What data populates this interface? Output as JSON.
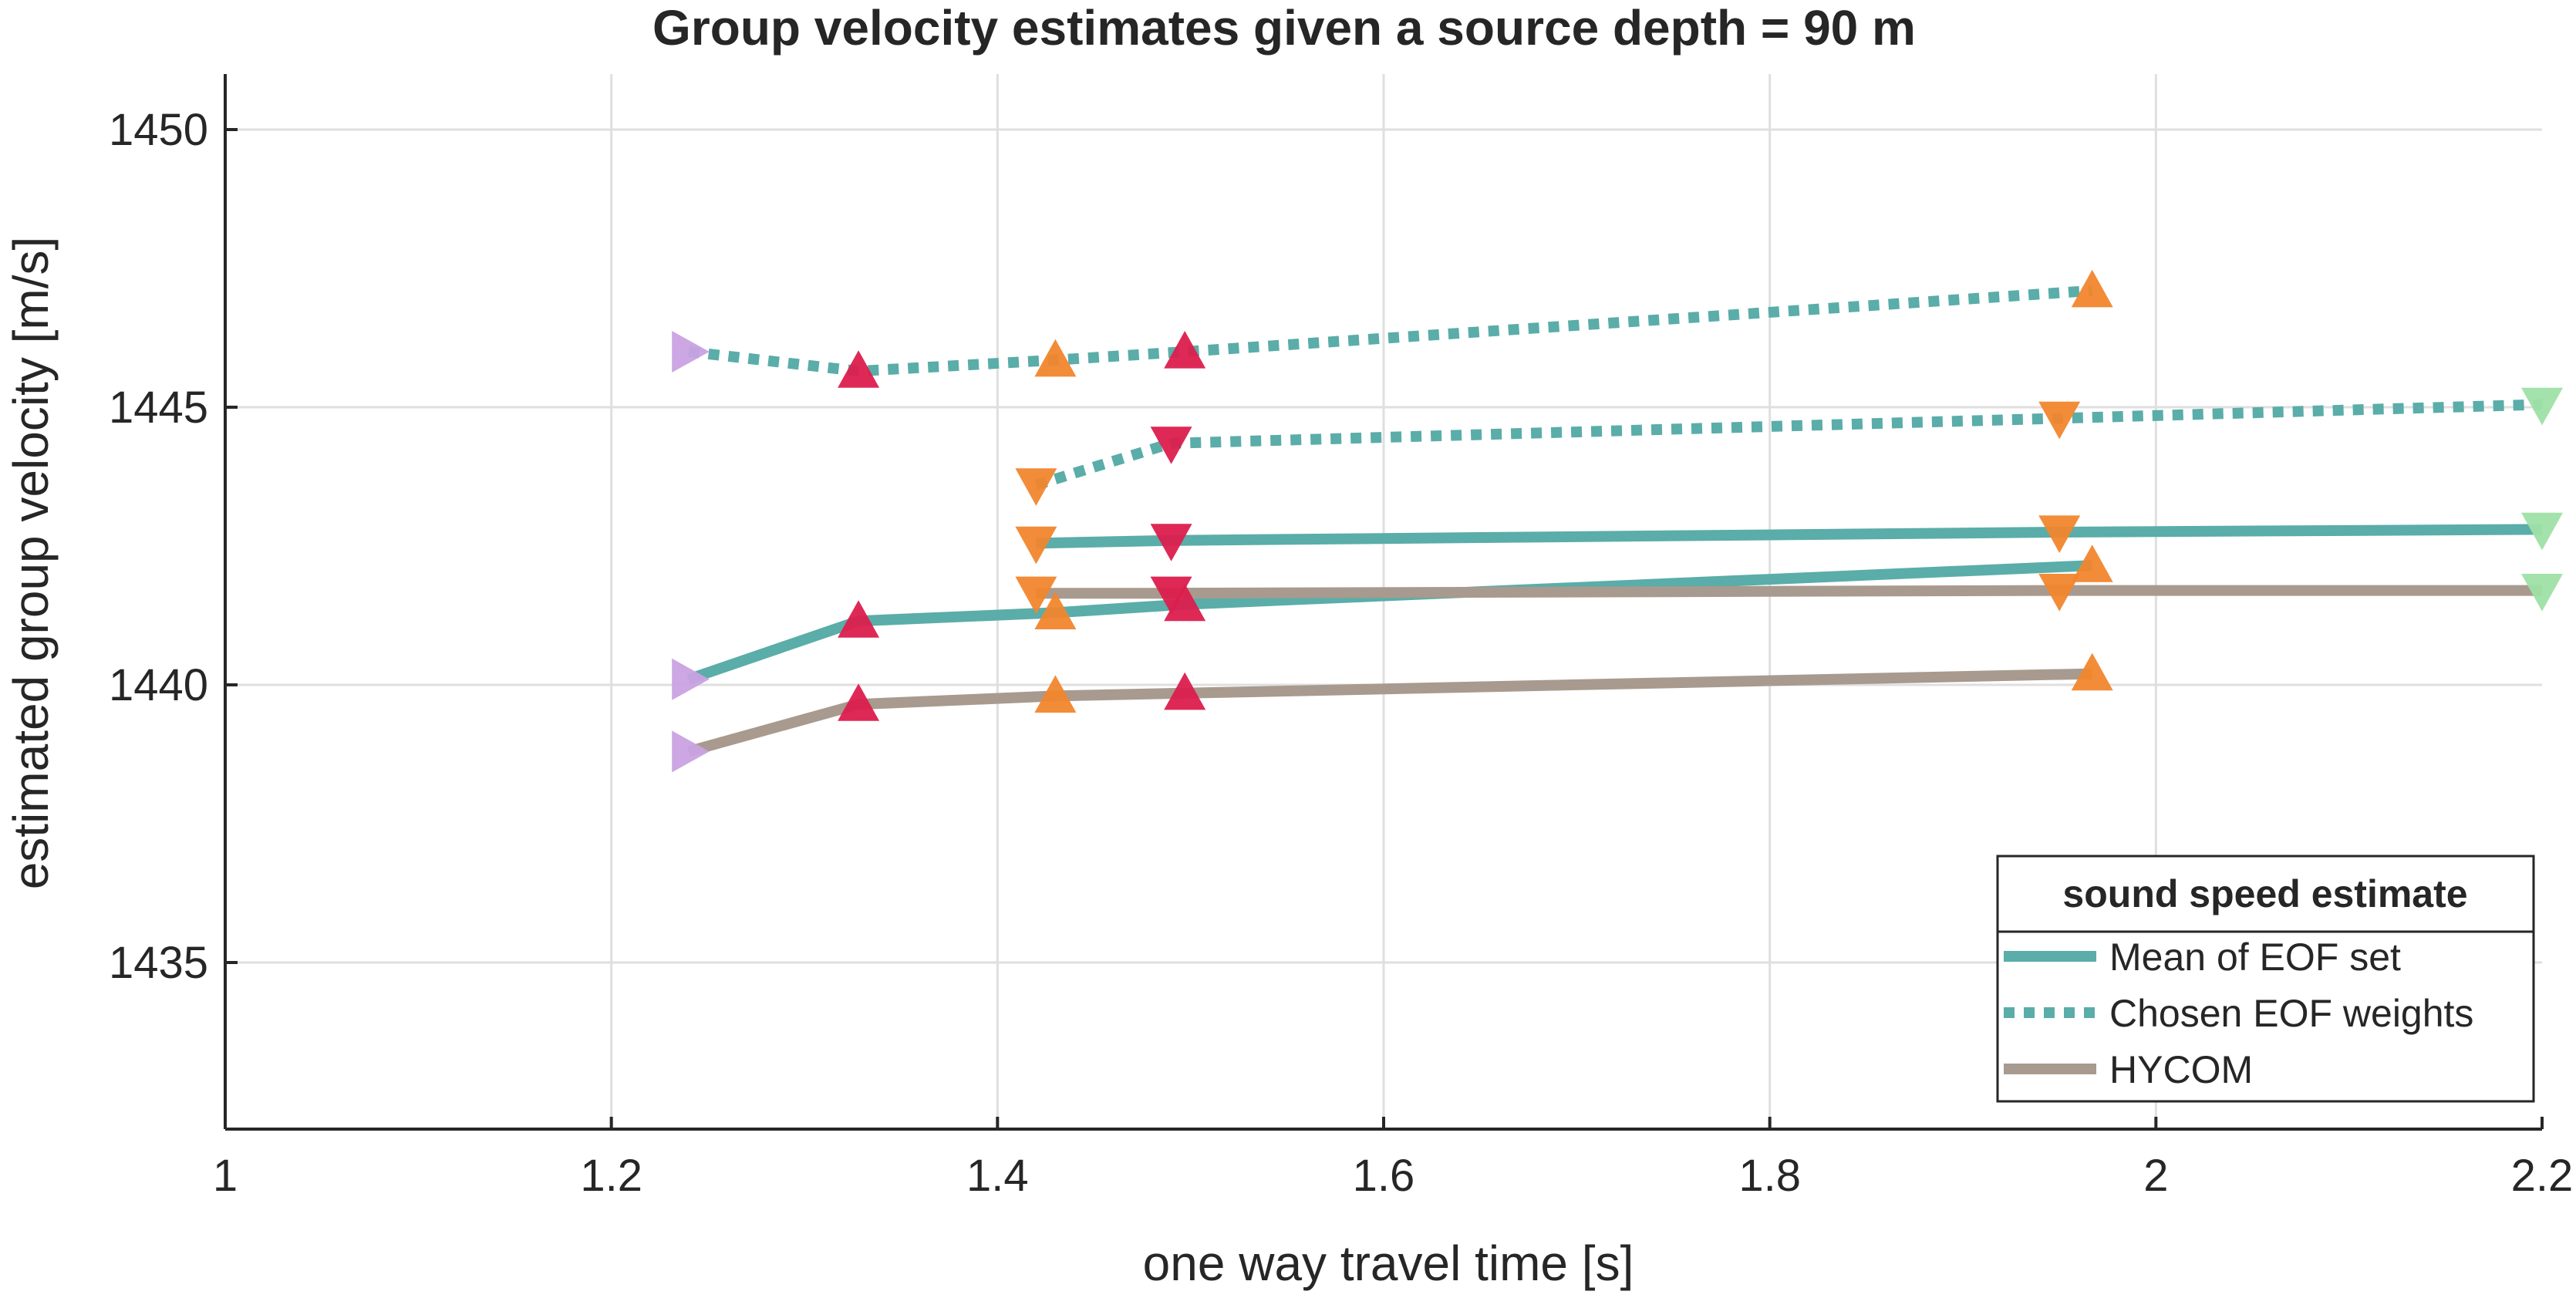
{
  "chart_data": {
    "type": "line",
    "title": "Group velocity estimates given a source depth = 90 m",
    "xlabel": "one way travel time [s]",
    "ylabel": "estimated group velocity [m/s]",
    "xlim": [
      1.0,
      2.2
    ],
    "ylim": [
      1432,
      1451
    ],
    "xticks": [
      1,
      1.2,
      1.4,
      1.6,
      1.8,
      2,
      2.2
    ],
    "xtick_labels": [
      "1",
      "1.2",
      "1.4",
      "1.6",
      "1.8",
      "2",
      "2.2"
    ],
    "yticks": [
      1435,
      1440,
      1445,
      1450
    ],
    "ytick_labels": [
      "1435",
      "1440",
      "1445",
      "1450"
    ],
    "grid": true,
    "legend": {
      "title": "sound speed estimate",
      "placement": "bottom-right",
      "entries": [
        {
          "label": "Mean of EOF set",
          "color": "#5aada9",
          "style": "solid"
        },
        {
          "label": "Chosen EOF weights",
          "color": "#5aada9",
          "style": "dotted"
        },
        {
          "label": "HYCOM",
          "color": "#a89a8e",
          "style": "solid"
        }
      ]
    },
    "series": [
      {
        "group": "Mean of EOF set",
        "style": "solid",
        "color": "#5aada9",
        "x": [
          1.24,
          1.328,
          1.43,
          1.497,
          1.967
        ],
        "y": [
          1440.1,
          1441.15,
          1441.3,
          1441.45,
          1442.15
        ],
        "markers": [
          "right",
          "up",
          "up",
          "up",
          "up"
        ],
        "marker_colors": [
          "#c9a2e1",
          "#dc1e4d",
          "#f1862d",
          "#dc1e4d",
          "#f1862d"
        ]
      },
      {
        "group": "Mean of EOF set",
        "style": "solid",
        "color": "#5aada9",
        "x": [
          1.42,
          1.49,
          1.95,
          2.2
        ],
        "y": [
          1442.55,
          1442.6,
          1442.75,
          1442.8
        ],
        "markers": [
          "down",
          "down",
          "down",
          "down"
        ],
        "marker_colors": [
          "#f1862d",
          "#dc1e4d",
          "#f1862d",
          "#9fe0a6"
        ]
      },
      {
        "group": "Chosen EOF weights",
        "style": "dotted",
        "color": "#5aada9",
        "x": [
          1.24,
          1.328,
          1.43,
          1.497,
          1.967
        ],
        "y": [
          1446.0,
          1445.65,
          1445.85,
          1446.0,
          1447.1
        ],
        "markers": [
          "right",
          "up",
          "up",
          "up",
          "up"
        ],
        "marker_colors": [
          "#c9a2e1",
          "#dc1e4d",
          "#f1862d",
          "#dc1e4d",
          "#f1862d"
        ]
      },
      {
        "group": "Chosen EOF weights",
        "style": "dotted",
        "color": "#5aada9",
        "x": [
          1.42,
          1.49,
          1.95,
          2.2
        ],
        "y": [
          1443.6,
          1444.35,
          1444.8,
          1445.05
        ],
        "markers": [
          "down",
          "down",
          "down",
          "down"
        ],
        "marker_colors": [
          "#f1862d",
          "#dc1e4d",
          "#f1862d",
          "#9fe0a6"
        ]
      },
      {
        "group": "HYCOM",
        "style": "solid",
        "color": "#a89a8e",
        "x": [
          1.24,
          1.328,
          1.43,
          1.497,
          1.967
        ],
        "y": [
          1438.8,
          1439.65,
          1439.8,
          1439.85,
          1440.2
        ],
        "markers": [
          "right",
          "up",
          "up",
          "up",
          "up"
        ],
        "marker_colors": [
          "#c9a2e1",
          "#dc1e4d",
          "#f1862d",
          "#dc1e4d",
          "#f1862d"
        ]
      },
      {
        "group": "HYCOM",
        "style": "solid",
        "color": "#a89a8e",
        "x": [
          1.42,
          1.49,
          1.95,
          2.2
        ],
        "y": [
          1441.65,
          1441.65,
          1441.7,
          1441.7
        ],
        "markers": [
          "down",
          "down",
          "down",
          "down"
        ],
        "marker_colors": [
          "#f1862d",
          "#dc1e4d",
          "#f1862d",
          "#9fe0a6"
        ]
      }
    ]
  }
}
